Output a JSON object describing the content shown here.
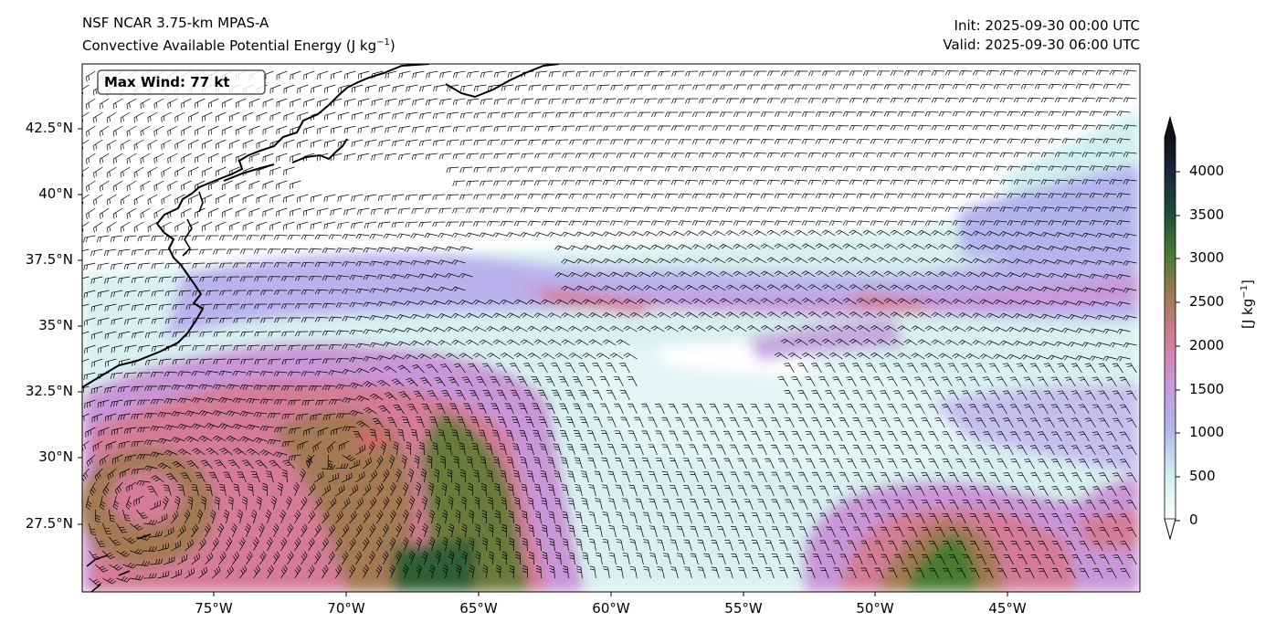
{
  "header": {
    "model": "NSF NCAR 3.75-km MPAS-A",
    "field_prefix": "Convective Available Potential Energy (J kg",
    "field_sup": "−1",
    "field_suffix": ")",
    "init": "Init: 2025-09-30 00:00 UTC",
    "valid": "Valid: 2025-09-30 06:00 UTC"
  },
  "annotation": {
    "max_wind": "Max Wind: 77 kt"
  },
  "axes": {
    "lat_labels": [
      "42.5°N",
      "40°N",
      "37.5°N",
      "35°N",
      "32.5°N",
      "30°N",
      "27.5°N"
    ],
    "lon_labels": [
      "75°W",
      "70°W",
      "65°W",
      "60°W",
      "55°W",
      "50°W",
      "45°W"
    ]
  },
  "colorbar": {
    "ticks": [
      "4000",
      "3500",
      "3000",
      "2500",
      "2000",
      "1500",
      "1000",
      "500",
      "0"
    ],
    "units_prefix": "[J kg",
    "units_sup": "−1",
    "units_suffix": "]",
    "colors": [
      "#ffffff",
      "#cfeff0",
      "#b3b3ee",
      "#c996d8",
      "#d47c97",
      "#a47a54",
      "#4a7a32",
      "#1e4d3a",
      "#1a2a3a",
      "#101018"
    ]
  }
}
